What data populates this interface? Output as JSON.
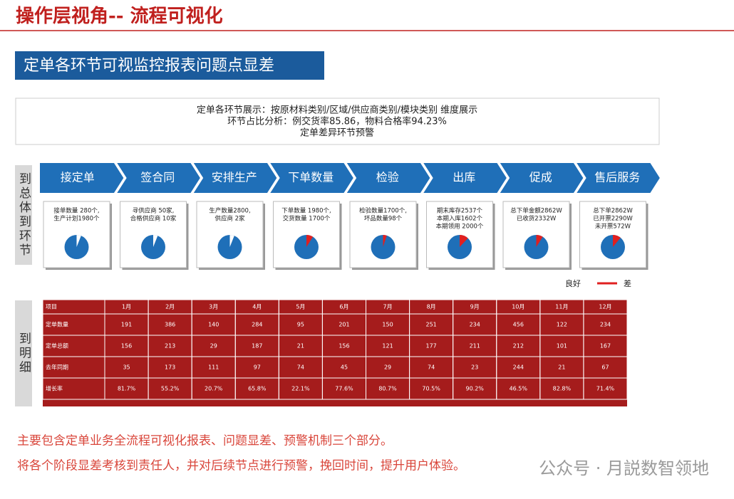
{
  "header": {
    "title": "操作层视角-- 流程可视化"
  },
  "banner": "定单各环节可视监控报表问题点显差",
  "bullets": [
    "定单各环节展示：按原材料类别/区域/供应商类别/模块类别  维度展示",
    "环节占比分析：例交货率85.86，物料合格率94.23%",
    "定单差异环节预警"
  ],
  "side_labels": [
    "到总体到环节",
    "到明细"
  ],
  "stages": [
    {
      "name": "接定单",
      "lines": [
        "接单数量 280个,",
        "生产计划1980个"
      ],
      "bad": 6,
      "bad_color": "#ffffff"
    },
    {
      "name": "签合同",
      "lines": [
        "寻供应商 50家,",
        "合格供应商 10家"
      ],
      "bad": 6,
      "bad_color": "#ffffff"
    },
    {
      "name": "安排生产",
      "lines": [
        "生产数量2800,",
        "供应商 2家"
      ],
      "bad": 6,
      "bad_color": "#ffffff"
    },
    {
      "name": "下单数量",
      "lines": [
        "下单数量 1980个,",
        "交货数量 1700个"
      ],
      "bad": 9,
      "bad_color": "#e02020"
    },
    {
      "name": "检验",
      "lines": [
        "检验数量1700个,",
        "坏品数量98个"
      ],
      "bad": 5,
      "bad_color": "#e02020"
    },
    {
      "name": "出库",
      "lines": [
        "期末库存2537个",
        "本期入库1602个",
        "本期领用 2000个"
      ],
      "bad": 12,
      "bad_color": "#e02020"
    },
    {
      "name": "促成",
      "lines": [
        "总下单金额2862W",
        "已收货2332W"
      ],
      "bad": 9,
      "bad_color": "#e02020"
    },
    {
      "name": "售后服务",
      "lines": [
        "总下单2862W",
        "已开票2290W",
        "未开票572W"
      ],
      "bad": 11,
      "bad_color": "#e02020"
    }
  ],
  "legend": {
    "good": "良好",
    "bad": "差"
  },
  "table": {
    "header": [
      "项目",
      "1月",
      "2月",
      "3月",
      "4月",
      "5月",
      "6月",
      "7月",
      "8月",
      "9月",
      "10月",
      "11月",
      "12月"
    ],
    "rows": [
      [
        "定单数量",
        "191",
        "386",
        "140",
        "284",
        "95",
        "201",
        "150",
        "251",
        "234",
        "456",
        "122",
        "234"
      ],
      [
        "定单总额",
        "156",
        "213",
        "29",
        "187",
        "21",
        "156",
        "121",
        "177",
        "211",
        "212",
        "101",
        "167"
      ],
      [
        "去年同期",
        "35",
        "173",
        "111",
        "97",
        "74",
        "45",
        "29",
        "74",
        "23",
        "244",
        "21",
        "67"
      ],
      [
        "增长率",
        "81.7%",
        "55.2%",
        "20.7%",
        "65.8%",
        "22.1%",
        "77.6%",
        "80.7%",
        "70.5%",
        "90.2%",
        "46.5%",
        "82.8%",
        "71.4%"
      ]
    ]
  },
  "notes": [
    "主要包含定单业务全流程可视化报表、问题显差、预警机制三个部分。",
    "将各个阶段显差考核到责任人，并对后续节点进行预警，挽回时间，提升用户体验。"
  ],
  "watermark": "公众号 · 月説数智领地"
}
